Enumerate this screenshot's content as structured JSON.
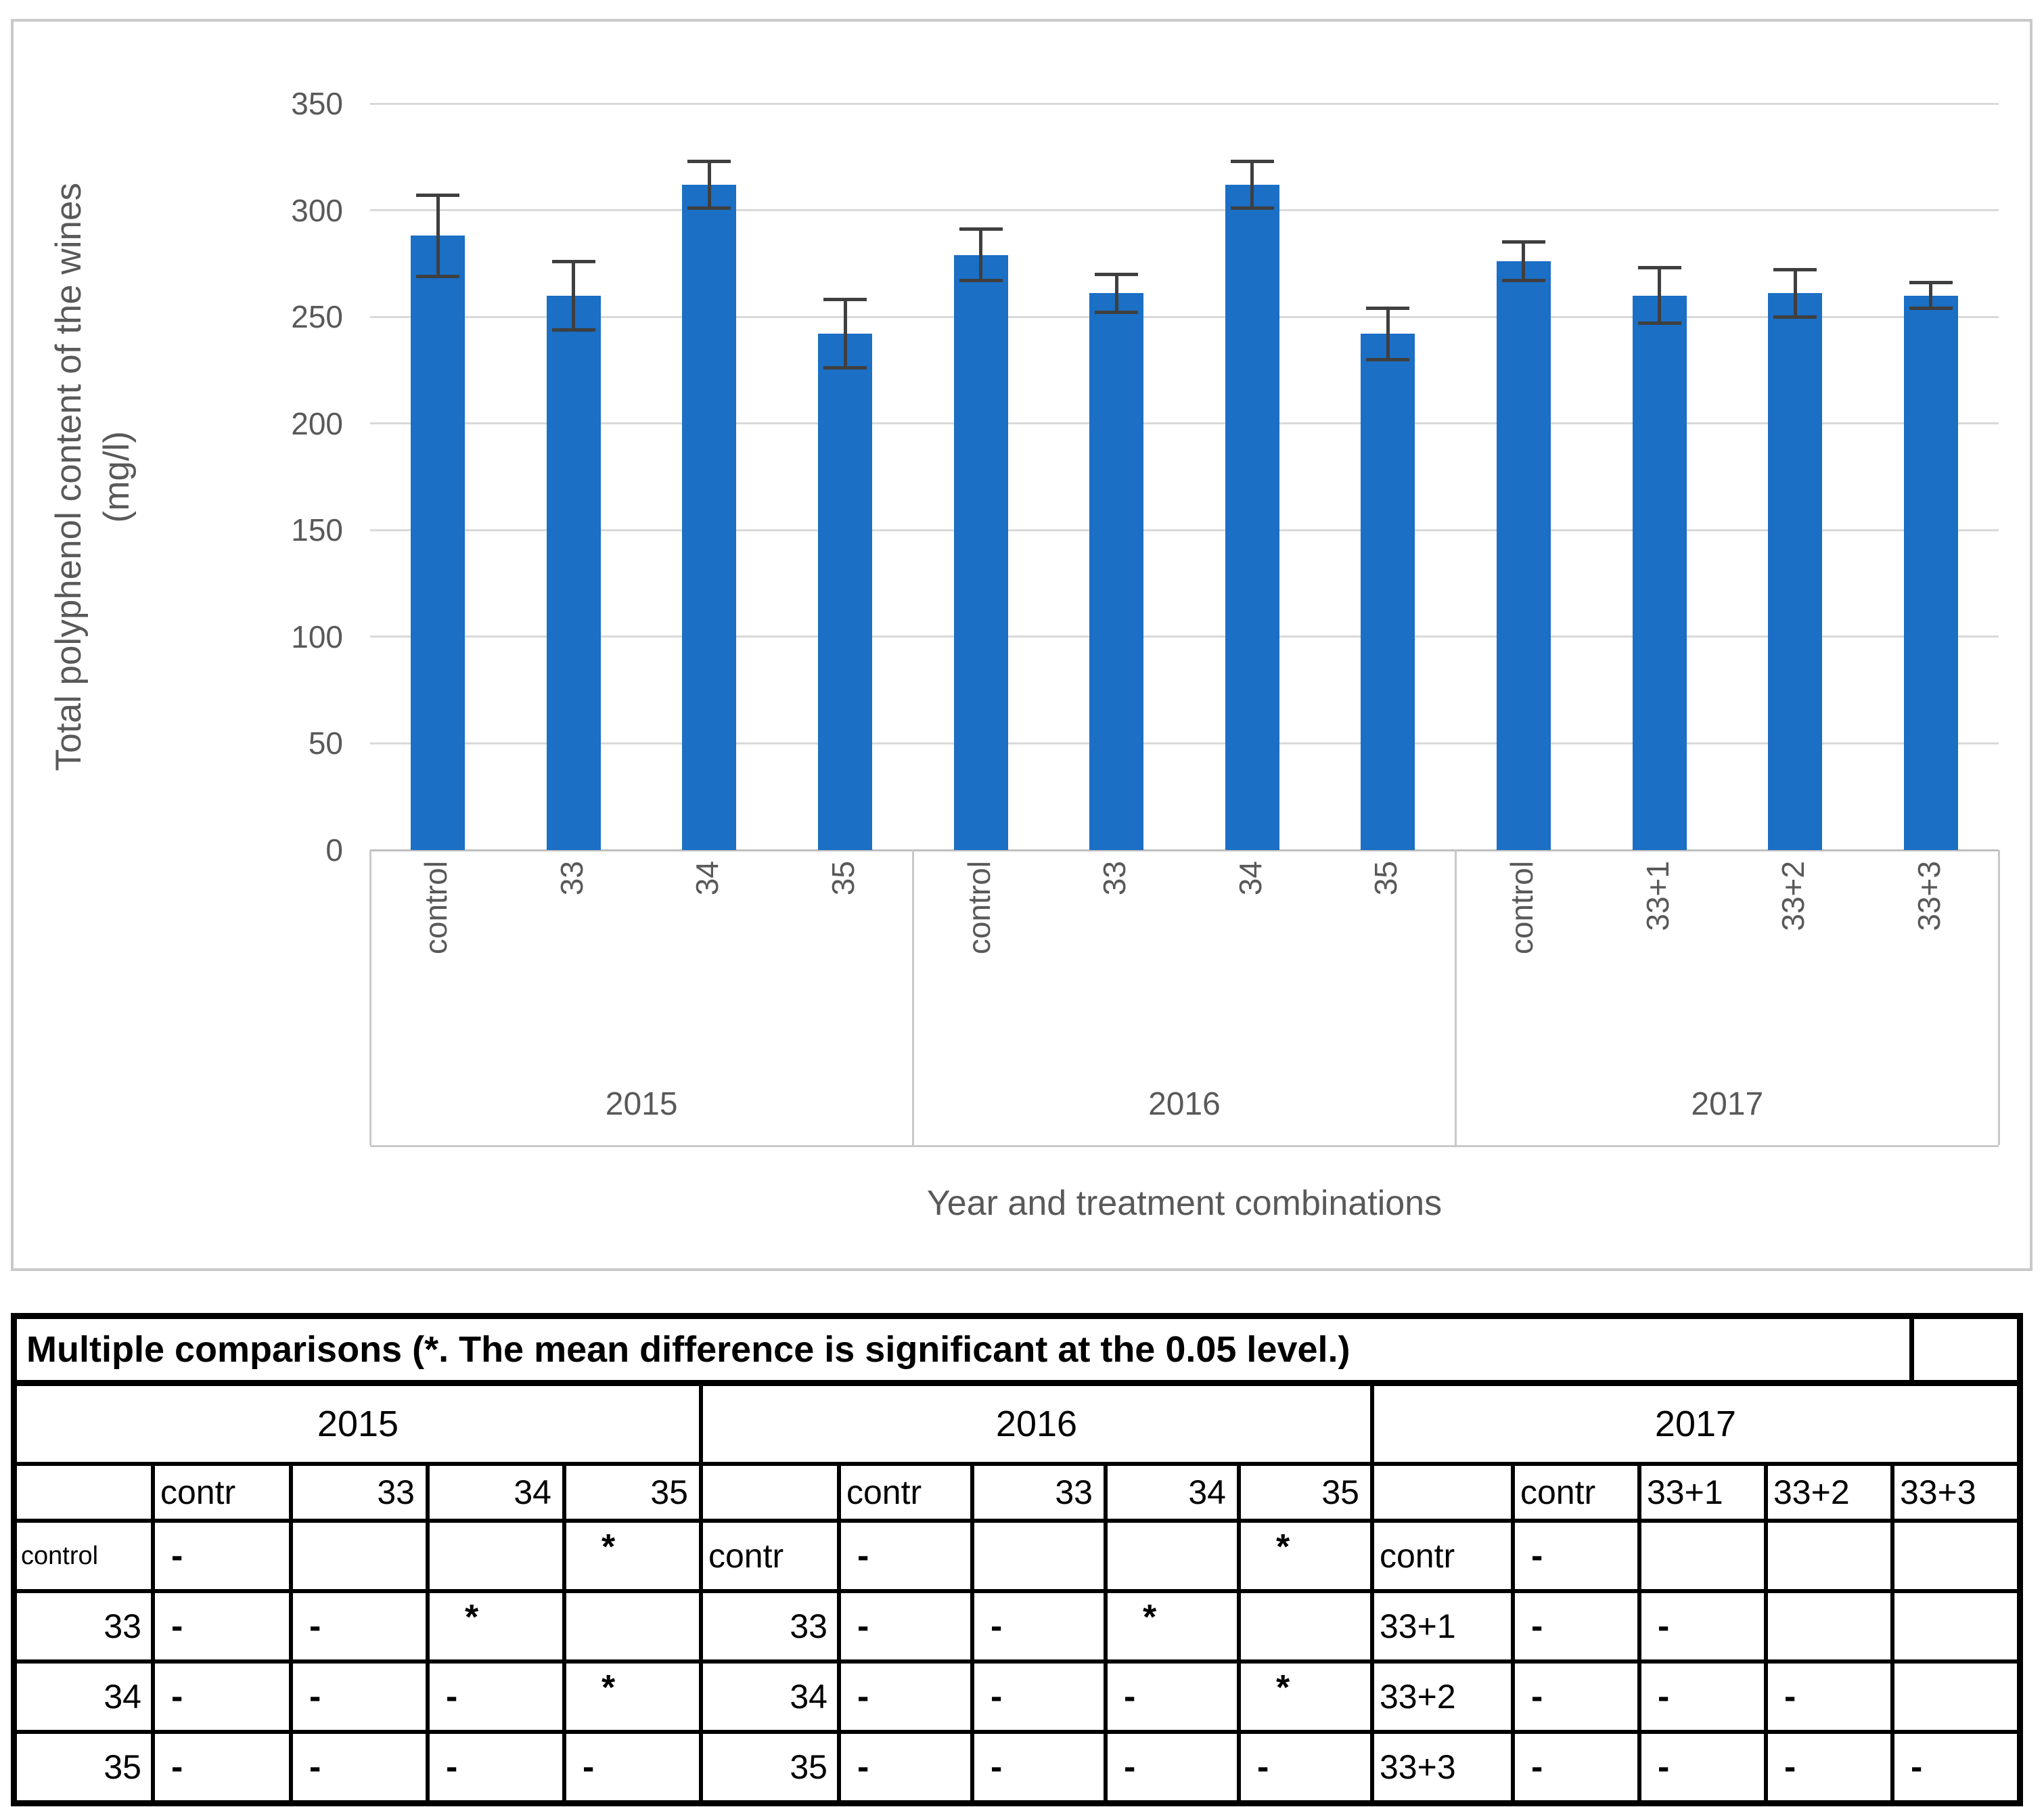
{
  "chart_data": {
    "type": "bar",
    "title": "",
    "xlabel": "Year and treatment combinations",
    "ylabel": "Total polyphenol content of the wines (mg/l)",
    "ylabel_lines": [
      "Total polyphenol content of the wines",
      "(mg/l)"
    ],
    "ylim": [
      0,
      350
    ],
    "yticks": [
      350,
      300,
      250,
      200,
      150,
      100,
      50,
      0
    ],
    "grid": true,
    "legend_position": "none",
    "bar_color": "#1B6FC5",
    "error_bar_color": "#3F3F3F",
    "axis_text_color": "#595959",
    "groups": [
      {
        "year": "2015",
        "categories": [
          "control",
          "33",
          "34",
          "35"
        ],
        "values": [
          288,
          260,
          312,
          242
        ],
        "errors": [
          19,
          16,
          11,
          16
        ]
      },
      {
        "year": "2016",
        "categories": [
          "control",
          "33",
          "34",
          "35"
        ],
        "values": [
          279,
          261,
          312,
          242
        ],
        "errors": [
          12,
          9,
          11,
          12
        ]
      },
      {
        "year": "2017",
        "categories": [
          "control",
          "33+1",
          "33+2",
          "33+3"
        ],
        "values": [
          276,
          260,
          261,
          260
        ],
        "errors": [
          9,
          13,
          11,
          6
        ]
      }
    ]
  },
  "table": {
    "title": "Multiple comparisons (*. The mean difference is significant at the 0.05 level.)",
    "significance_marker": "*",
    "blocks": [
      {
        "year": "2015",
        "col_headers": [
          "contr",
          "33",
          "34",
          "35"
        ],
        "rows": [
          {
            "label": "control",
            "cells": [
              "-",
              "",
              "",
              "*"
            ]
          },
          {
            "label": "33",
            "cells": [
              "-",
              "-",
              "*",
              ""
            ]
          },
          {
            "label": "34",
            "cells": [
              "-",
              "-",
              "-",
              "*"
            ]
          },
          {
            "label": "35",
            "cells": [
              "-",
              "-",
              "-",
              "-"
            ]
          }
        ]
      },
      {
        "year": "2016",
        "col_headers": [
          "contr",
          "33",
          "34",
          "35"
        ],
        "rows": [
          {
            "label": "contr",
            "cells": [
              "-",
              "",
              "",
              "*"
            ]
          },
          {
            "label": "33",
            "cells": [
              "-",
              "-",
              "*",
              ""
            ]
          },
          {
            "label": "34",
            "cells": [
              "-",
              "-",
              "-",
              "*"
            ]
          },
          {
            "label": "35",
            "cells": [
              "-",
              "-",
              "-",
              "-"
            ]
          }
        ]
      },
      {
        "year": "2017",
        "col_headers": [
          "contr",
          "33+1",
          "33+2",
          "33+3"
        ],
        "rows": [
          {
            "label": "contr",
            "cells": [
              "-",
              "",
              "",
              ""
            ]
          },
          {
            "label": "33+1",
            "cells": [
              "-",
              "-",
              "",
              ""
            ]
          },
          {
            "label": "33+2",
            "cells": [
              "-",
              "-",
              "-",
              ""
            ]
          },
          {
            "label": "33+3",
            "cells": [
              "-",
              "-",
              "-",
              "-"
            ]
          }
        ]
      }
    ]
  }
}
